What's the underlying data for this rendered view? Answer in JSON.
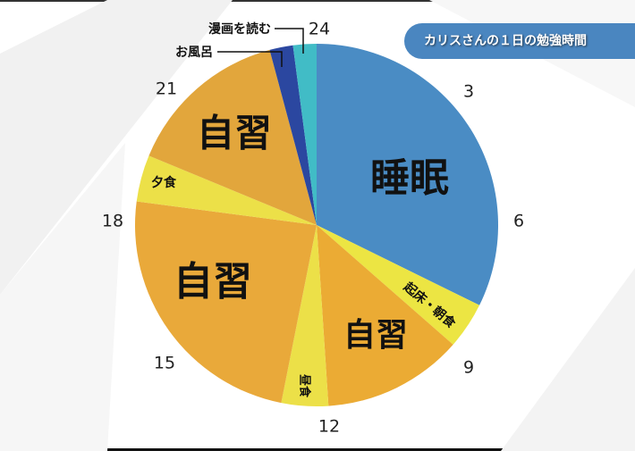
{
  "chart_data": {
    "type": "pie",
    "title": "カリスさんの１日の勉強時間",
    "unit": "hours (24h clock)",
    "start": "top, clockwise",
    "slices": [
      {
        "label": "睡眠",
        "start": 0,
        "end": 7.75,
        "color": "#4a8cc4",
        "label_size": "large"
      },
      {
        "label": "起床・朝食",
        "start": 7.75,
        "end": 8.75,
        "color": "#ece543",
        "label_size": "small"
      },
      {
        "label": "自習",
        "start": 8.75,
        "end": 11.75,
        "color": "#ebab34",
        "label_size": "large"
      },
      {
        "label": "昼食",
        "start": 11.75,
        "end": 12.75,
        "color": "#ece048",
        "label_size": "small"
      },
      {
        "label": "自習",
        "start": 12.75,
        "end": 18.5,
        "color": "#e9a93a",
        "label_size": "large"
      },
      {
        "label": "夕食",
        "start": 18.5,
        "end": 19.5,
        "color": "#ece048",
        "label_size": "small"
      },
      {
        "label": "自習",
        "start": 19.5,
        "end": 23,
        "color": "#e2a63c",
        "label_size": "large"
      },
      {
        "label": "お風呂",
        "start": 23,
        "end": 23.5,
        "color": "#2b47a0",
        "label_size": "callout"
      },
      {
        "label": "漫画を読む",
        "start": 23.5,
        "end": 24,
        "color": "#41bcc6",
        "label_size": "callout"
      }
    ],
    "clock_ticks": [
      "24",
      "3",
      "6",
      "9",
      "12",
      "15",
      "18",
      "21"
    ]
  }
}
